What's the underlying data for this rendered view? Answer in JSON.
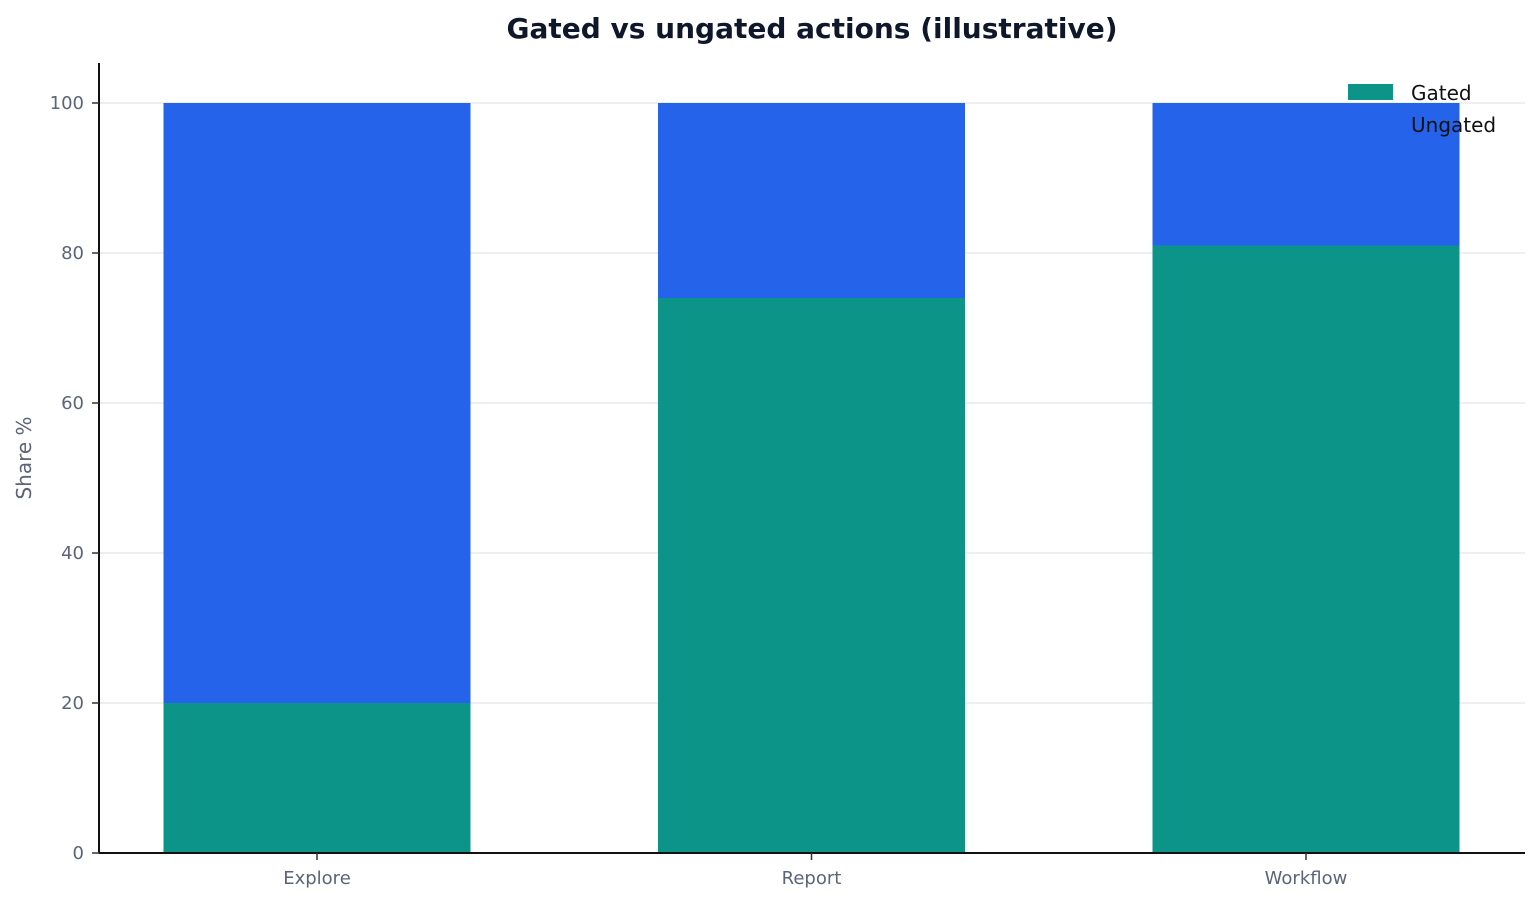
{
  "chart_data": {
    "type": "bar",
    "stacked": true,
    "title": "Gated vs ungated actions (illustrative)",
    "xlabel": "",
    "ylabel": "Share %",
    "categories": [
      "Explore",
      "Report",
      "Workflow"
    ],
    "series": [
      {
        "name": "Gated",
        "values": [
          20,
          74,
          81
        ],
        "color": "#0d9488"
      },
      {
        "name": "Ungated",
        "values": [
          80,
          26,
          19
        ],
        "color": "#2563eb"
      }
    ],
    "ylim": [
      0,
      105
    ],
    "yticks": [
      0,
      20,
      40,
      60,
      80,
      100
    ],
    "grid": "y",
    "legend": "top-right"
  }
}
